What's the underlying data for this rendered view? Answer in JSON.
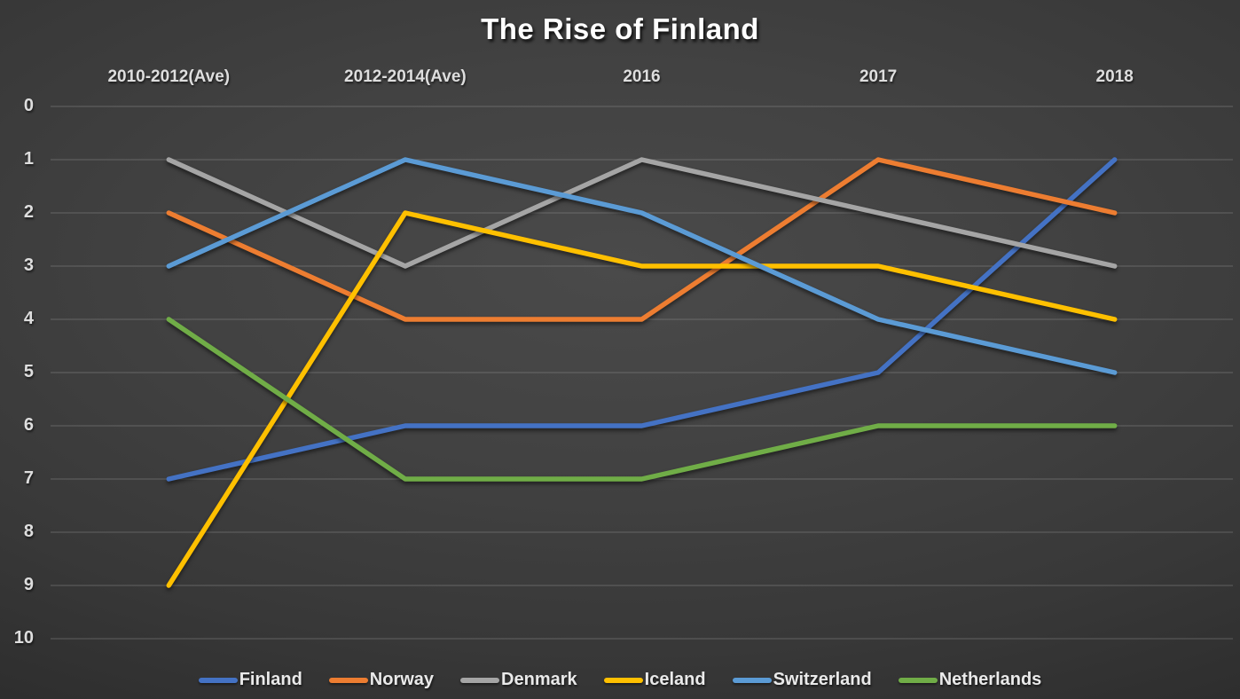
{
  "title": "The Rise of Finland",
  "chart_data": {
    "type": "line",
    "title": "The Rise of Finland",
    "categories": [
      "2010-2012(Ave)",
      "2012-2014(Ave)",
      "2016",
      "2017",
      "2018"
    ],
    "series": [
      {
        "name": "Finland",
        "color": "#4472C4",
        "values": [
          7,
          6,
          6,
          5,
          1
        ]
      },
      {
        "name": "Norway",
        "color": "#ED7D31",
        "values": [
          2,
          4,
          4,
          1,
          2
        ]
      },
      {
        "name": "Denmark",
        "color": "#A5A5A5",
        "values": [
          1,
          3,
          1,
          2,
          3
        ]
      },
      {
        "name": "Iceland",
        "color": "#FFC000",
        "values": [
          9,
          2,
          3,
          3,
          4
        ]
      },
      {
        "name": "Switzerland",
        "color": "#5B9BD5",
        "values": [
          3,
          1,
          2,
          4,
          5
        ]
      },
      {
        "name": "Netherlands",
        "color": "#70AD47",
        "values": [
          4,
          7,
          7,
          6,
          6
        ]
      }
    ],
    "y_axis": {
      "min": 0,
      "max": 10,
      "ticks": [
        0,
        1,
        2,
        3,
        4,
        5,
        6,
        7,
        8,
        9,
        10
      ],
      "reversed_rank_axis": true
    },
    "x_axis_labels_position": "top",
    "legend_position": "bottom",
    "grid": "horizontal",
    "background": "dark-gray-gradient"
  }
}
